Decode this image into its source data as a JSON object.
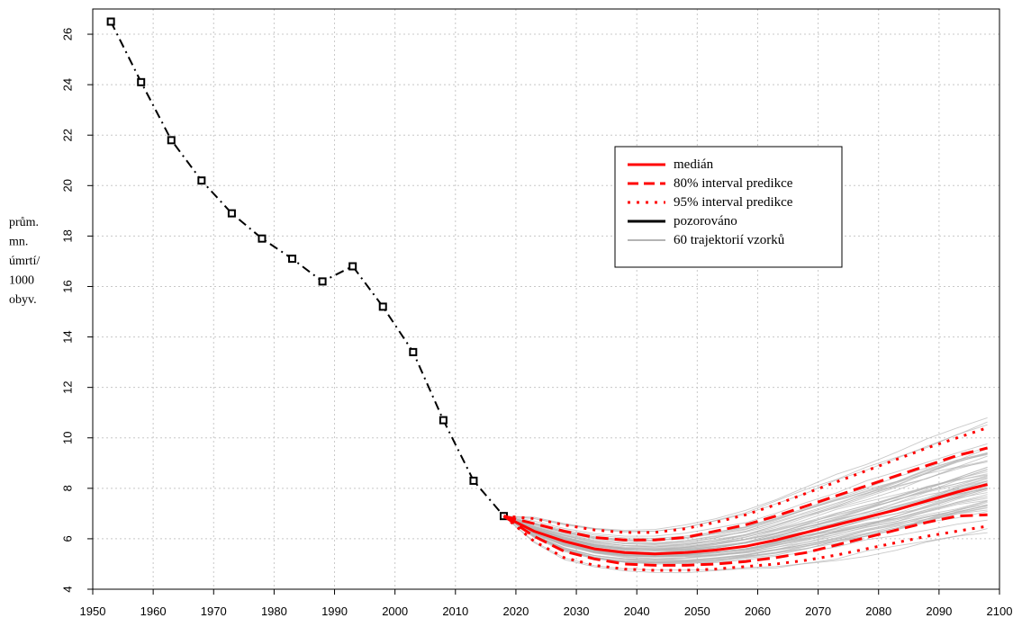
{
  "chart_data": {
    "type": "line",
    "ylabel_lines": [
      "prům.",
      "mn.",
      "úmrtí/",
      "1000",
      "obyv."
    ],
    "xlim": [
      1950,
      2100
    ],
    "ylim": [
      4,
      27
    ],
    "x_ticks": [
      1950,
      1960,
      1970,
      1980,
      1990,
      2000,
      2010,
      2020,
      2030,
      2040,
      2050,
      2060,
      2070,
      2080,
      2090,
      2100
    ],
    "y_ticks": [
      4,
      6,
      8,
      10,
      12,
      14,
      16,
      18,
      20,
      22,
      24,
      26
    ],
    "grid": true,
    "legend_position": "upper-middle-right",
    "colors": {
      "observed": "#000000",
      "median": "#ff0000",
      "intervals": "#ff0000",
      "trajectories": "#b4b4b4"
    },
    "series": [
      {
        "name": "pozorováno",
        "style": "dash-dot with square markers",
        "x": [
          1953,
          1958,
          1963,
          1968,
          1973,
          1978,
          1983,
          1988,
          1993,
          1998,
          2003,
          2008,
          2013,
          2018
        ],
        "values": [
          26.5,
          24.1,
          21.8,
          20.2,
          18.9,
          17.9,
          17.1,
          16.2,
          16.8,
          15.2,
          13.4,
          10.7,
          8.3,
          6.9
        ]
      },
      {
        "name": "medián",
        "style": "solid",
        "x": [
          2018,
          2023,
          2028,
          2033,
          2038,
          2043,
          2048,
          2053,
          2058,
          2063,
          2068,
          2073,
          2078,
          2083,
          2088,
          2093,
          2098
        ],
        "values": [
          6.9,
          6.3,
          5.9,
          5.6,
          5.45,
          5.4,
          5.45,
          5.55,
          5.7,
          5.95,
          6.25,
          6.55,
          6.85,
          7.15,
          7.5,
          7.85,
          8.15
        ]
      },
      {
        "name": "80% interval predikce (horní)",
        "style": "dashed",
        "x": [
          2018,
          2023,
          2028,
          2033,
          2038,
          2043,
          2048,
          2053,
          2058,
          2063,
          2068,
          2073,
          2078,
          2083,
          2088,
          2093,
          2098
        ],
        "values": [
          6.9,
          6.6,
          6.3,
          6.05,
          5.95,
          5.95,
          6.05,
          6.3,
          6.55,
          6.9,
          7.3,
          7.7,
          8.1,
          8.5,
          8.9,
          9.3,
          9.6
        ]
      },
      {
        "name": "80% interval predikce (dolní)",
        "style": "dashed",
        "x": [
          2018,
          2023,
          2028,
          2033,
          2038,
          2043,
          2048,
          2053,
          2058,
          2063,
          2068,
          2073,
          2078,
          2083,
          2088,
          2093,
          2098
        ],
        "values": [
          6.9,
          6.1,
          5.5,
          5.2,
          5.0,
          4.95,
          4.95,
          5.0,
          5.1,
          5.25,
          5.45,
          5.75,
          6.05,
          6.35,
          6.65,
          6.9,
          6.95
        ]
      },
      {
        "name": "95% interval predikce (horní)",
        "style": "dotted",
        "x": [
          2018,
          2023,
          2028,
          2033,
          2038,
          2043,
          2048,
          2053,
          2058,
          2063,
          2068,
          2073,
          2078,
          2083,
          2088,
          2093,
          2098
        ],
        "values": [
          6.9,
          6.8,
          6.55,
          6.35,
          6.25,
          6.25,
          6.4,
          6.65,
          6.95,
          7.35,
          7.8,
          8.25,
          8.7,
          9.15,
          9.6,
          10.0,
          10.4
        ]
      },
      {
        "name": "95% interval predikce (dolní)",
        "style": "dotted",
        "x": [
          2018,
          2023,
          2028,
          2033,
          2038,
          2043,
          2048,
          2053,
          2058,
          2063,
          2068,
          2073,
          2078,
          2083,
          2088,
          2093,
          2098
        ],
        "values": [
          6.9,
          5.9,
          5.25,
          4.95,
          4.8,
          4.75,
          4.75,
          4.8,
          4.9,
          5.0,
          5.15,
          5.35,
          5.6,
          5.85,
          6.1,
          6.3,
          6.5
        ]
      }
    ],
    "trajectories": {
      "name": "60 trajektorií vzorků",
      "count": 60
    },
    "legend": [
      {
        "label": "medián",
        "style": "solid",
        "color": "#ff0000"
      },
      {
        "label": "80% interval predikce",
        "style": "dashed",
        "color": "#ff0000"
      },
      {
        "label": "95% interval predikce",
        "style": "dotted",
        "color": "#ff0000"
      },
      {
        "label": "pozorováno",
        "style": "solid",
        "color": "#000000"
      },
      {
        "label": "60 trajektorií vzorků",
        "style": "solid",
        "color": "#b4b4b4"
      }
    ]
  }
}
